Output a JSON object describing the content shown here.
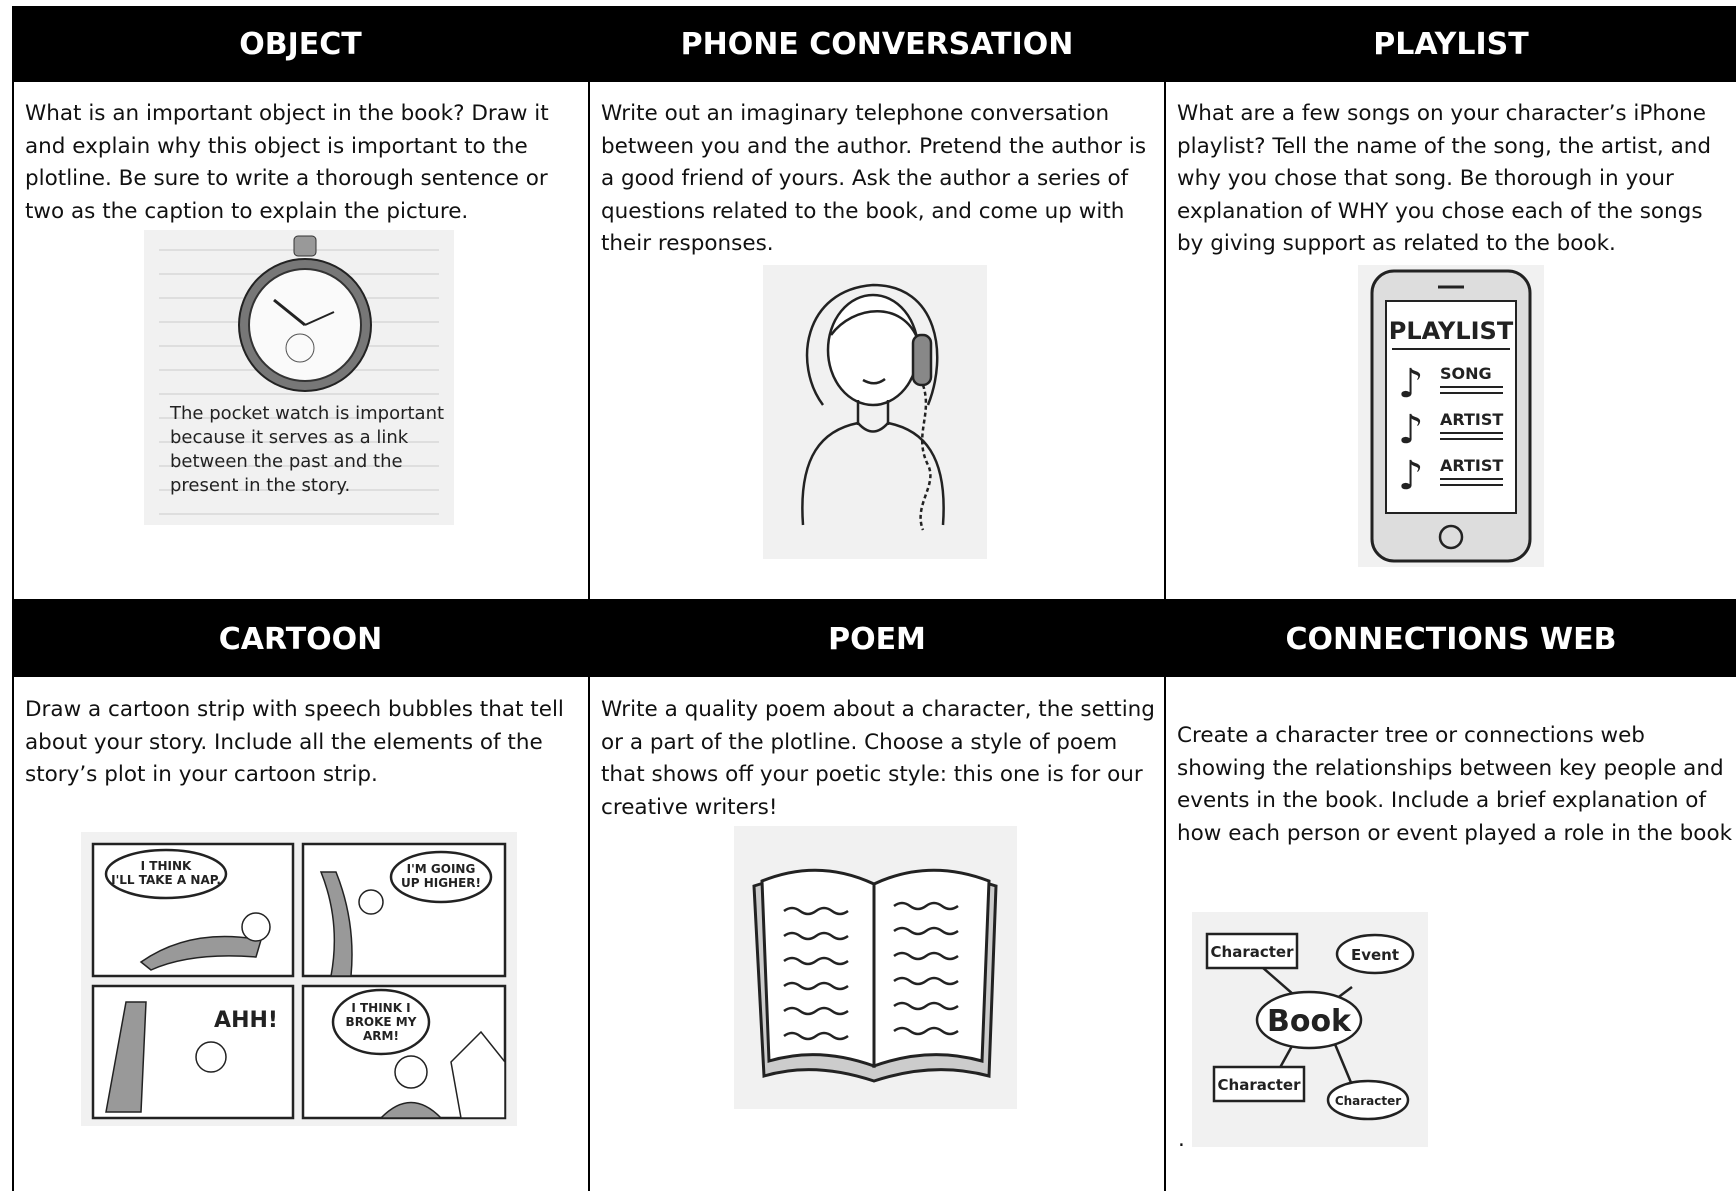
{
  "cards": [
    {
      "title": "OBJECT",
      "text": "What is an important object in the book? Draw it and explain why this object is important to the plotline. Be sure to write a thorough sentence or two as the caption to explain the picture.",
      "illustration": {
        "caption_lines": [
          "The pocket watch is important",
          "because it serves as a link",
          "between the past and the",
          "present in the story."
        ]
      }
    },
    {
      "title": "PHONE CONVERSATION",
      "text": "Write out an imaginary telephone conversation between you and the author. Pretend the author is a good friend of yours. Ask the author a series of questions related to the book, and come up with their responses."
    },
    {
      "title": "PLAYLIST",
      "text": "What are a few songs on your character’s iPhone playlist? Tell the name of the song, the artist, and why you chose that song. Be thorough in your explanation of WHY you chose each of the songs by giving support as related to the book.",
      "illustration": {
        "heading": "PLAYLIST",
        "items": [
          "SONG",
          "ARTIST",
          "ARTIST"
        ]
      }
    },
    {
      "title": "CARTOON",
      "text": "Draw a cartoon strip with speech bubbles that tell about your story. Include all the elements of the story’s plot in your cartoon strip.",
      "illustration": {
        "bubbles": [
          [
            "I THINK",
            "I'LL TAKE A NAP."
          ],
          [
            "I'M GOING",
            "UP HIGHER!"
          ],
          [
            "AHH!"
          ],
          [
            "I THINK I",
            "BROKE MY",
            "ARM!"
          ]
        ]
      }
    },
    {
      "title": "POEM",
      "text": "Write a quality poem about a character, the setting or a part of the plotline. Choose a style of poem that shows off your poetic style: this one is for our creative writers!"
    },
    {
      "title": "CONNECTIONS WEB",
      "text": "Create a character tree or connections web showing the relationships between key people and events in the book. Include a brief explanation of how each person or event played a role in the book",
      "illustration": {
        "center": "Book",
        "nodes": [
          "Character",
          "Event",
          "Character",
          "Character"
        ]
      },
      "note": "."
    }
  ]
}
